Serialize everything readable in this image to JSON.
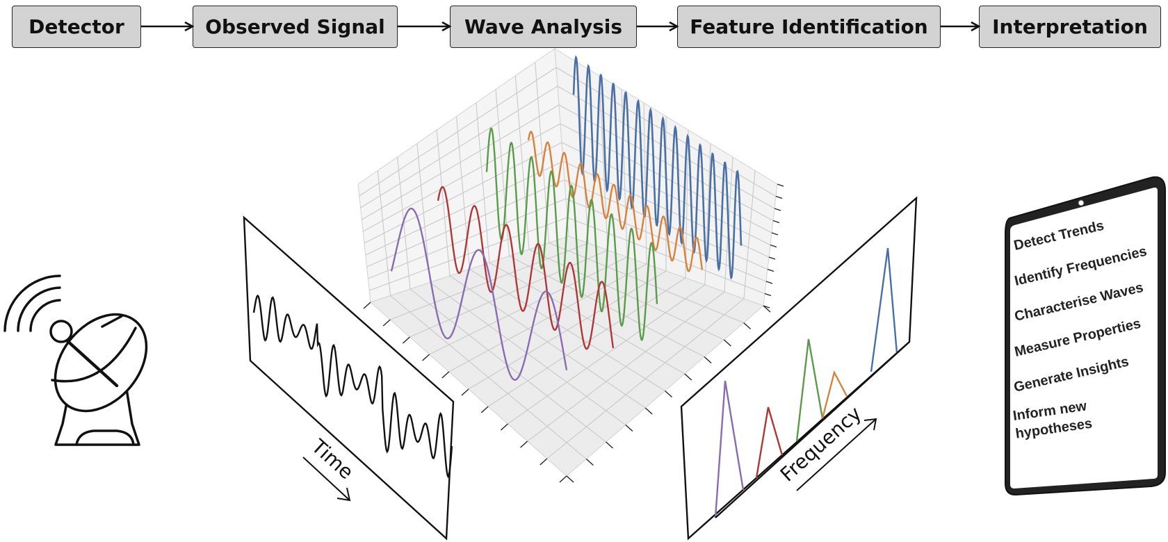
{
  "pipeline": {
    "stages": [
      {
        "id": "detector",
        "label": "Detector"
      },
      {
        "id": "observed-signal",
        "label": "Observed Signal"
      },
      {
        "id": "wave-analysis",
        "label": "Wave Analysis"
      },
      {
        "id": "feature-identification",
        "label": "Feature Identification"
      },
      {
        "id": "interpretation",
        "label": "Interpretation"
      }
    ]
  },
  "time_panel": {
    "axis_label": "Time"
  },
  "frequency_panel": {
    "axis_label": "Frequency"
  },
  "tablet": {
    "items": [
      "Detect Trends",
      "Identify Frequencies",
      "Characterise Waves",
      "Measure Properties",
      "Generate Insights",
      "Inform new hypotheses"
    ]
  },
  "colors": {
    "stage_fill": "#d3d3d3",
    "stroke": "#111111",
    "wave_blue": "#4a6fa5",
    "wave_orange": "#d9813a",
    "wave_green": "#5a9a4a",
    "wave_red": "#b03636",
    "wave_purple": "#8a6ab0",
    "grid_line": "#c8c8c8",
    "pane_fill": "#eeeeee"
  },
  "icons": {
    "detector": "satellite-dish-icon",
    "tablet": "tablet-icon"
  }
}
